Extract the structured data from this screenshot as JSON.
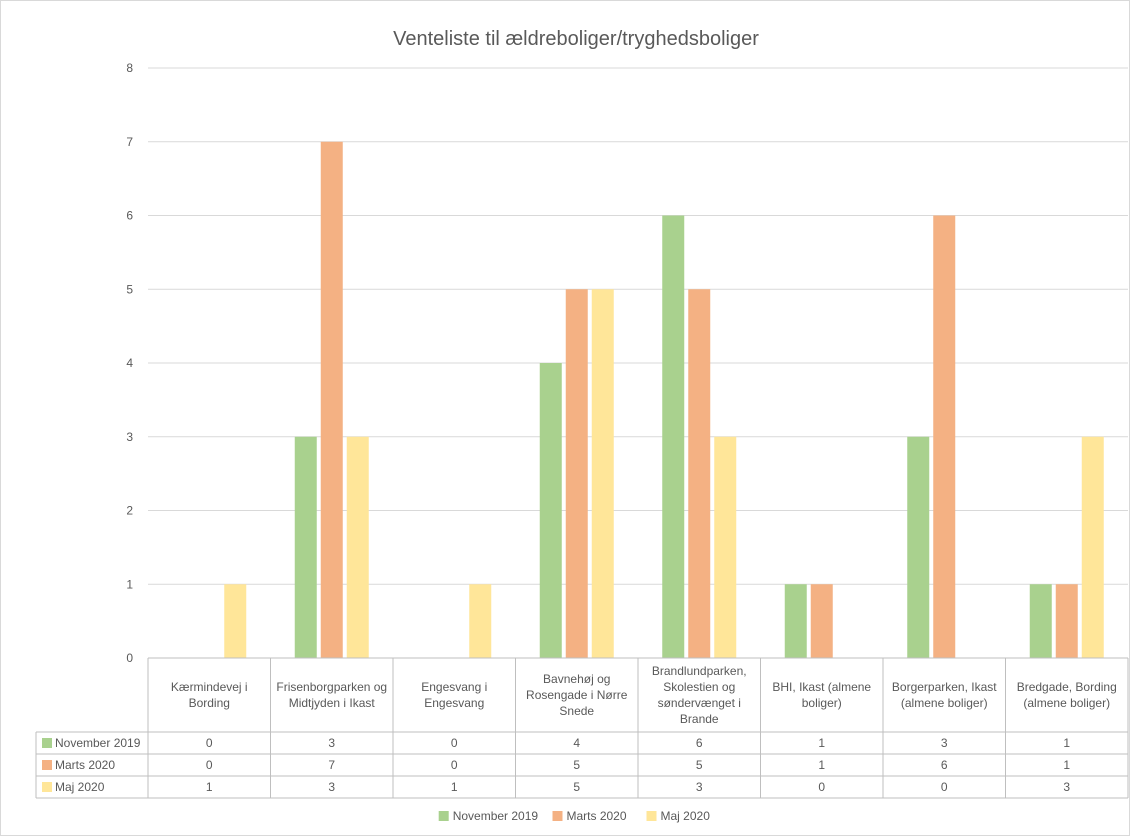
{
  "chart_data": {
    "type": "bar",
    "title": "Venteliste til ældreboliger/tryghedsboliger",
    "categories": [
      "Kærmindevej i Bording",
      "Frisenborgparken og Midtjyden i Ikast",
      "Engesvang i Engesvang",
      "Bavnehøj og Rosengade i Nørre Snede",
      "Brandlundparken, Skolestien og søndervænget i Brande",
      "BHI, Ikast (almene boliger)",
      "Borgerparken, Ikast (almene boliger)",
      "Bredgade, Bording (almene boliger)"
    ],
    "category_lines": [
      [
        "Kærmindevej i",
        "Bording"
      ],
      [
        "Frisenborgparken og",
        "Midtjyden i Ikast"
      ],
      [
        "Engesvang i",
        "Engesvang"
      ],
      [
        "Bavnehøj og",
        "Rosengade i Nørre",
        "Snede"
      ],
      [
        "Brandlundparken,",
        "Skolestien og",
        "søndervænget i",
        "Brande"
      ],
      [
        "BHI, Ikast (almene",
        "boliger)"
      ],
      [
        "Borgerparken, Ikast",
        "(almene boliger)"
      ],
      [
        "Bredgade, Bording",
        "(almene boliger)"
      ]
    ],
    "series": [
      {
        "name": "November 2019",
        "color": "#a9d18e",
        "values": [
          0,
          3,
          0,
          4,
          6,
          1,
          3,
          1
        ]
      },
      {
        "name": "Marts 2020",
        "color": "#f4b183",
        "values": [
          0,
          7,
          0,
          5,
          5,
          1,
          6,
          1
        ]
      },
      {
        "name": "Maj 2020",
        "color": "#ffe699",
        "values": [
          1,
          3,
          1,
          5,
          3,
          0,
          0,
          3
        ]
      }
    ],
    "y_ticks": [
      "0",
      "1",
      "2",
      "3",
      "4",
      "5",
      "6",
      "7",
      "8"
    ],
    "ylim": [
      0,
      8
    ],
    "grid": true,
    "legend": "bottom",
    "data_table": true
  }
}
